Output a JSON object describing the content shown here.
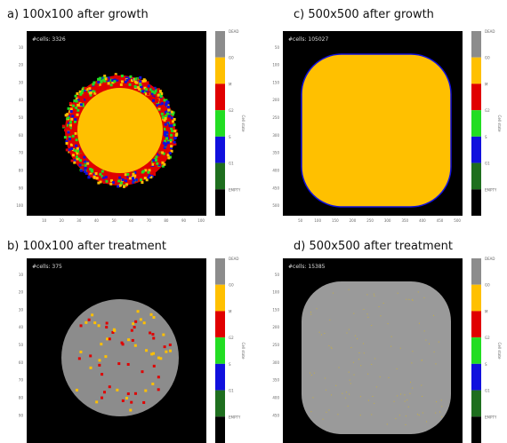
{
  "panels": [
    {
      "title": "a) 100x100 after growth",
      "cells": "#cells: 3326",
      "xticks": [
        "10",
        "20",
        "30",
        "40",
        "50",
        "60",
        "70",
        "80",
        "90",
        "100"
      ],
      "yticks": [
        "10",
        "20",
        "30",
        "40",
        "50",
        "60",
        "70",
        "80",
        "90",
        "100"
      ]
    },
    {
      "title": "b) 100x100 after treatment",
      "cells": "#cells: 375",
      "yticks": [
        "10",
        "20",
        "30",
        "40",
        "50",
        "60",
        "70",
        "80",
        "90"
      ]
    },
    {
      "title": "c) 500x500 after growth",
      "cells": "#cells: 105027",
      "xticks": [
        "50",
        "100",
        "150",
        "200",
        "250",
        "300",
        "350",
        "400",
        "450",
        "500"
      ],
      "yticks": [
        "50",
        "100",
        "150",
        "200",
        "250",
        "300",
        "350",
        "400",
        "450",
        "500"
      ]
    },
    {
      "title": "d) 500x500 after treatment",
      "cells": "#cells: 15385",
      "yticks": [
        "50",
        "100",
        "150",
        "200",
        "250",
        "300",
        "350",
        "400",
        "450"
      ]
    }
  ],
  "colorbar": {
    "label": "Cell state",
    "ticks": [
      "DEAD",
      "G0",
      "M",
      "G2",
      "S",
      "G1",
      "EMPTY"
    ]
  }
}
